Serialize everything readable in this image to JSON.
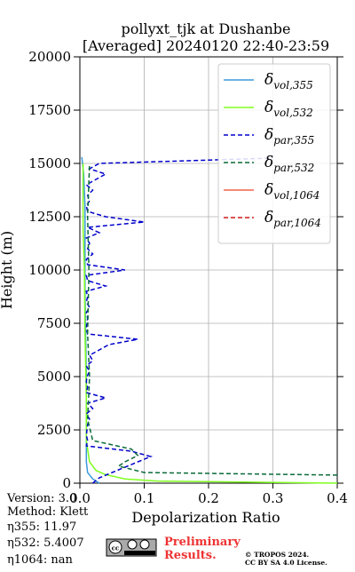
{
  "chart_data": {
    "type": "line",
    "title": "pollyxt_tjk at Dushanbe",
    "subtitle": "[Averaged] 20240120 22:40-23:59",
    "xlabel": "Depolarization Ratio",
    "ylabel": "Height (m)",
    "xlim": [
      0,
      0.4
    ],
    "xticks": [
      {
        "value": 0,
        "label": "0.0"
      },
      0.1,
      0.2,
      0.3,
      0.4
    ],
    "ylim": [
      0,
      20000
    ],
    "yticks": [
      0,
      2500,
      5000,
      7500,
      10000,
      12500,
      15000,
      17500,
      20000
    ],
    "grid": true,
    "legend": "upper right",
    "series": [
      {
        "symbol": "δ",
        "subscript": "vol,355",
        "color": "#3a9ad9",
        "dash": false,
        "x": [
          0.03,
          0.02,
          0.012,
          0.01,
          0.01,
          0.01,
          0.01,
          0.009,
          0.008,
          0.008,
          0.008,
          0.006,
          0.003
        ],
        "y": [
          0,
          200,
          500,
          1000,
          2000,
          3000,
          5000,
          7000,
          9000,
          11000,
          13000,
          14500,
          15300
        ]
      },
      {
        "symbol": "δ",
        "subscript": "vol,532",
        "color": "#7fff1f",
        "dash": false,
        "x": [
          0.4,
          0.12,
          0.07,
          0.04,
          0.025,
          0.015,
          0.01,
          0.01,
          0.008,
          0.007,
          0.005,
          0.005
        ],
        "y": [
          0,
          100,
          200,
          400,
          600,
          1000,
          2000,
          4000,
          7000,
          10000,
          12000,
          15000
        ]
      },
      {
        "symbol": "δ",
        "subscript": "par,355",
        "color": "#0000cc",
        "dash": true,
        "x": [
          0.02,
          0.03,
          0.05,
          0.07,
          0.09,
          0.11,
          0.08,
          0.01,
          0.012,
          0.01,
          0.011,
          0.012,
          0.015,
          0.01,
          0.02,
          0.012,
          0.04,
          0.01,
          0.012,
          0.01,
          0.011,
          0.015,
          0.01,
          0.02,
          0.015,
          0.03,
          0.045,
          0.09,
          0.012,
          0.01,
          0.011,
          0.012,
          0.01,
          0.015,
          0.01,
          0.012,
          0.01,
          0.04,
          0.012,
          0.01,
          0.07,
          0.012,
          0.01,
          0.02,
          0.012,
          0.015,
          0.01,
          0.03,
          0.012,
          0.1,
          0.04,
          0.012,
          0.01,
          0.015,
          0.012,
          0.02,
          0.01,
          0.025,
          0.04,
          0.015,
          0.03,
          0.3
        ],
        "y": [
          0,
          250,
          500,
          750,
          1000,
          1250,
          1500,
          1750,
          2000,
          2250,
          2500,
          2750,
          3000,
          3250,
          3500,
          3750,
          4000,
          4250,
          4500,
          4750,
          5000,
          5250,
          5500,
          5750,
          6000,
          6250,
          6500,
          6750,
          7000,
          7250,
          7500,
          7750,
          8000,
          8250,
          8500,
          8750,
          9000,
          9250,
          9500,
          9750,
          10000,
          10250,
          10500,
          10750,
          11000,
          11250,
          11500,
          11750,
          12000,
          12250,
          12500,
          12750,
          13000,
          13250,
          13500,
          13750,
          14000,
          14250,
          14500,
          14750,
          15000,
          15250
        ]
      },
      {
        "symbol": "δ",
        "subscript": "par,532",
        "color": "#0a6b3a",
        "dash": true,
        "x": [
          0.4,
          0.1,
          0.06,
          0.07,
          0.09,
          0.08,
          0.02,
          0.012,
          0.015,
          0.012,
          0.014,
          0.012,
          0.015
        ],
        "y": [
          380,
          500,
          800,
          1000,
          1300,
          1600,
          2000,
          3000,
          5000,
          7000,
          10000,
          12500,
          15000
        ]
      },
      {
        "symbol": "δ",
        "subscript": "vol,1064",
        "color": "#f4634a",
        "dash": false,
        "x": [],
        "y": []
      },
      {
        "symbol": "δ",
        "subscript": "par,1064",
        "color": "#d01c1c",
        "dash": true,
        "x": [],
        "y": []
      }
    ]
  },
  "footer": {
    "info": [
      "Version: 3.0",
      "Method: Klett",
      "η355:  11.97",
      "η532: 5.4007",
      "η1064:    nan"
    ],
    "preliminary": [
      "Preliminary",
      "Results."
    ],
    "copyright": [
      "© TROPOS 2024.",
      "CC BY SA 4.0 License."
    ]
  }
}
